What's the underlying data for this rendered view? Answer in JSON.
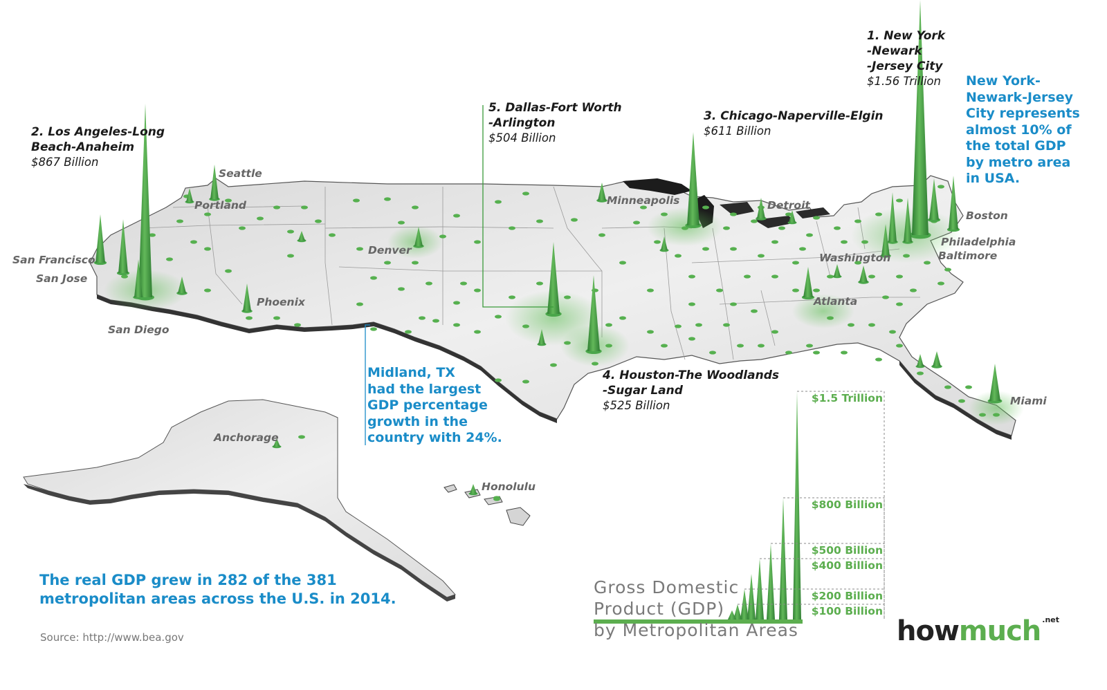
{
  "map": {
    "city_labels": [
      {
        "id": "seattle",
        "text": "Seattle"
      },
      {
        "id": "portland",
        "text": "Portland"
      },
      {
        "id": "san-francisco",
        "text": "San Francisco"
      },
      {
        "id": "san-jose",
        "text": "San Jose"
      },
      {
        "id": "san-diego",
        "text": "San Diego"
      },
      {
        "id": "phoenix",
        "text": "Phoenix"
      },
      {
        "id": "denver",
        "text": "Denver"
      },
      {
        "id": "minneapolis",
        "text": "Minneapolis"
      },
      {
        "id": "detroit",
        "text": "Detroit"
      },
      {
        "id": "boston",
        "text": "Boston"
      },
      {
        "id": "philadelphia",
        "text": "Philadelphia"
      },
      {
        "id": "baltimore",
        "text": "Baltimore"
      },
      {
        "id": "washington",
        "text": "Washington"
      },
      {
        "id": "atlanta",
        "text": "Atlanta"
      },
      {
        "id": "miami",
        "text": "Miami"
      },
      {
        "id": "anchorage",
        "text": "Anchorage"
      },
      {
        "id": "honolulu",
        "text": "Honolulu"
      }
    ],
    "top_metros": [
      {
        "id": "rank1",
        "lines": [
          "1. New York",
          "-Newark",
          "-Jersey City"
        ],
        "value": "$1.56 Trillion",
        "gdp_billion": 1560
      },
      {
        "id": "rank2",
        "lines": [
          "2. Los Angeles-Long",
          "Beach-Anaheim"
        ],
        "value": "$867 Billion",
        "gdp_billion": 867
      },
      {
        "id": "rank3",
        "lines": [
          "3. Chicago-Naperville-Elgin"
        ],
        "value": "$611 Billion",
        "gdp_billion": 611
      },
      {
        "id": "rank4",
        "lines": [
          "4. Houston-The Woodlands",
          "-Sugar Land"
        ],
        "value": "$525 Billion",
        "gdp_billion": 525
      },
      {
        "id": "rank5",
        "lines": [
          "5. Dallas-Fort Worth",
          "-Arlington"
        ],
        "value": "$504 Billion",
        "gdp_billion": 504
      }
    ],
    "notes": {
      "new_york": [
        "New York-",
        "Newark-Jersey",
        "City represents",
        "almost 10% of",
        "the total GDP",
        "by metro area",
        "in USA."
      ],
      "midland": [
        "Midland, TX",
        "had the largest",
        "GDP percentage",
        "growth in the",
        "country with 24%."
      ],
      "growth": [
        "The real GDP grew in 282 of the 381",
        "metropolitan areas across the U.S. in 2014."
      ]
    },
    "colors": {
      "spike": "#4aa64a",
      "spike_dark": "#2f7d33",
      "note_blue": "#1a8cc8",
      "legend_green": "#5cae4f",
      "land": "#e6e6e6",
      "land_edge": "#444444"
    }
  },
  "legend": {
    "title_lines": [
      "Gross Domestic",
      "Product (GDP)",
      "by Metropolitan Areas"
    ],
    "levels": [
      {
        "label": "$1.5 Trillion",
        "value_billion": 1500
      },
      {
        "label": "$800 Billion",
        "value_billion": 800
      },
      {
        "label": "$500 Billion",
        "value_billion": 500
      },
      {
        "label": "$400 Billion",
        "value_billion": 400
      },
      {
        "label": "$200 Billion",
        "value_billion": 200
      },
      {
        "label": "$100 Billion",
        "value_billion": 100
      }
    ]
  },
  "footer": {
    "source": "Source: http://www.bea.gov",
    "brand_dark": "how",
    "brand_green": "much",
    "brand_suffix": ".net"
  }
}
